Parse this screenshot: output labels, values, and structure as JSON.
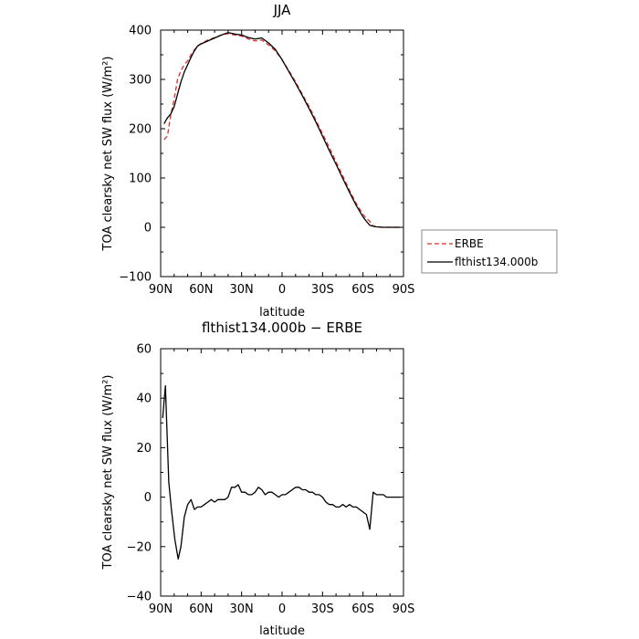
{
  "chart_data": [
    {
      "type": "line",
      "title": "JJA",
      "xlabel": "latitude",
      "ylabel": "TOA clearsky net SW flux (W/m²)",
      "xlim": [
        90,
        -90
      ],
      "ylim": [
        -100,
        400
      ],
      "xticks": [
        90,
        60,
        30,
        0,
        -30,
        -60,
        -90
      ],
      "xtick_labels": [
        "90N",
        "60N",
        "30N",
        "0",
        "30S",
        "60S",
        "90S"
      ],
      "yticks": [
        -100,
        0,
        100,
        200,
        300,
        400
      ],
      "ytick_labels": [
        "−100",
        "0",
        "100",
        "200",
        "300",
        "400"
      ],
      "legend_position": "right",
      "series": [
        {
          "name": "ERBE",
          "color": "#e0302a",
          "dash": true,
          "x": [
            87.5,
            85,
            82.5,
            80,
            77.5,
            75,
            72.5,
            70,
            67.5,
            65,
            62.5,
            60,
            55,
            50,
            45,
            40,
            35,
            30,
            25,
            20,
            15,
            10,
            5,
            0,
            -5,
            -10,
            -15,
            -20,
            -25,
            -30,
            -35,
            -40,
            -45,
            -50,
            -55,
            -60,
            -62.5,
            -65,
            -67.5,
            -70,
            -75,
            -80,
            -85,
            -87.5
          ],
          "y": [
            178,
            185,
            228,
            260,
            300,
            318,
            330,
            338,
            350,
            360,
            368,
            373,
            380,
            385,
            390,
            393,
            390,
            388,
            382,
            378,
            380,
            370,
            358,
            340,
            318,
            295,
            270,
            245,
            218,
            190,
            162,
            133,
            104,
            75,
            48,
            26,
            18,
            12,
            3,
            1,
            0,
            0,
            0,
            0
          ]
        },
        {
          "name": "flthist134.000b",
          "color": "#000000",
          "dash": false,
          "x": [
            87.5,
            85,
            82.5,
            80,
            77.5,
            75,
            72.5,
            70,
            67.5,
            65,
            62.5,
            60,
            55,
            50,
            45,
            40,
            35,
            30,
            25,
            20,
            15,
            10,
            5,
            0,
            -5,
            -10,
            -15,
            -20,
            -25,
            -30,
            -35,
            -40,
            -45,
            -50,
            -55,
            -60,
            -62.5,
            -65,
            -67.5,
            -70,
            -75,
            -80,
            -85,
            -87.5
          ],
          "y": [
            210,
            222,
            230,
            245,
            270,
            295,
            315,
            330,
            345,
            358,
            368,
            372,
            378,
            384,
            390,
            395,
            392,
            390,
            385,
            382,
            384,
            374,
            361,
            340,
            316,
            292,
            267,
            241,
            214,
            185,
            156,
            128,
            99,
            71,
            44,
            21,
            12,
            4,
            2,
            1,
            0,
            0,
            0,
            0
          ]
        }
      ]
    },
    {
      "type": "line",
      "title": "flthist134.000b − ERBE",
      "xlabel": "latitude",
      "ylabel": "TOA clearsky net SW flux (W/m²)",
      "xlim": [
        90,
        -90
      ],
      "ylim": [
        -40,
        60
      ],
      "xticks": [
        90,
        60,
        30,
        0,
        -30,
        -60,
        -90
      ],
      "xtick_labels": [
        "90N",
        "60N",
        "30N",
        "0",
        "30S",
        "60S",
        "90S"
      ],
      "yticks": [
        -40,
        -20,
        0,
        20,
        40,
        60
      ],
      "ytick_labels": [
        "−40",
        "−20",
        "0",
        "20",
        "40",
        "60"
      ],
      "series": [
        {
          "color": "#000000",
          "dash": false,
          "x": [
            88.5,
            86.5,
            84,
            82,
            79.5,
            77,
            75,
            72.5,
            70,
            67.5,
            65,
            62.5,
            60,
            57.5,
            55,
            52.5,
            50,
            47.5,
            45,
            42.5,
            40,
            37.5,
            35,
            32.5,
            30,
            27.5,
            25,
            22.5,
            20,
            17.5,
            15,
            12.5,
            10,
            7.5,
            5,
            2.5,
            0,
            -2.5,
            -5,
            -7.5,
            -10,
            -12.5,
            -15,
            -17.5,
            -20,
            -22.5,
            -25,
            -27.5,
            -30,
            -32.5,
            -35,
            -37.5,
            -40,
            -42.5,
            -45,
            -47.5,
            -50,
            -52.5,
            -55,
            -57.5,
            -60,
            -62.5,
            -65,
            -67.5,
            -70,
            -72.5,
            -75,
            -77.5,
            -80,
            -82.5,
            -85,
            -87.5
          ],
          "y": [
            32,
            45,
            6,
            -5,
            -17,
            -25,
            -20,
            -8,
            -3,
            -1,
            -5,
            -4,
            -4,
            -3,
            -2,
            -1,
            -2,
            -1,
            -1,
            -1,
            0,
            4,
            4,
            5,
            2,
            2,
            1,
            1,
            2,
            4,
            3,
            1,
            2,
            2,
            1,
            0,
            1,
            1,
            2,
            3,
            4,
            4,
            3,
            3,
            2,
            2,
            1,
            1,
            0,
            -2,
            -3,
            -3,
            -4,
            -4,
            -3,
            -4,
            -3,
            -4,
            -4,
            -5,
            -6,
            -7,
            -13,
            2,
            1,
            1,
            1,
            0,
            0,
            0,
            0,
            0
          ]
        }
      ]
    }
  ]
}
